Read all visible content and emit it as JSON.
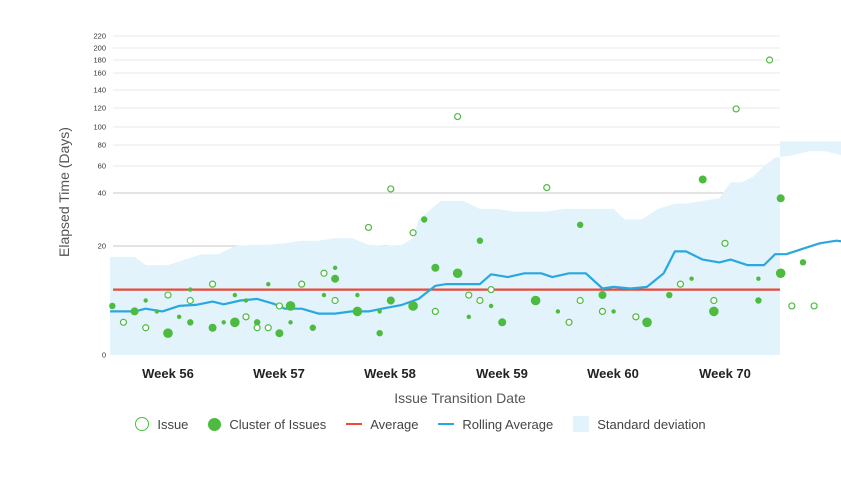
{
  "chart_data": {
    "type": "scatter",
    "ylabel": "Elapsed Time (Days)",
    "xlabel": "Issue Transition Date",
    "y_ticks": [
      "220",
      "200",
      "180",
      "160",
      "140",
      "120",
      "100",
      "80",
      "60",
      "40",
      "20",
      "0"
    ],
    "x_ticks": [
      "Week 56",
      "Week 57",
      "Week 58",
      "Week 59",
      "Week 60",
      "Week 70"
    ],
    "average": 12,
    "colors": {
      "issue": "#4cbb3f",
      "average": "#e84b3a",
      "rolling": "#29a8e0",
      "band": "#e2f3fb",
      "grid": "#dddddd"
    },
    "issues": [
      [
        55.1,
        6
      ],
      [
        55.3,
        5
      ],
      [
        55.5,
        11
      ],
      [
        55.7,
        10
      ],
      [
        55.9,
        13
      ],
      [
        56.2,
        7
      ],
      [
        56.3,
        5
      ],
      [
        56.4,
        5
      ],
      [
        56.5,
        9
      ],
      [
        56.7,
        13
      ],
      [
        56.9,
        15
      ],
      [
        57.0,
        10
      ],
      [
        57.3,
        27
      ],
      [
        57.5,
        43
      ],
      [
        57.7,
        25
      ],
      [
        57.9,
        8
      ],
      [
        58.1,
        111
      ],
      [
        58.2,
        11
      ],
      [
        58.3,
        10
      ],
      [
        58.4,
        12
      ],
      [
        58.9,
        44
      ],
      [
        59.1,
        6
      ],
      [
        59.2,
        10
      ],
      [
        59.4,
        8
      ],
      [
        59.7,
        7
      ],
      [
        60.1,
        13
      ],
      [
        60.4,
        10
      ],
      [
        60.6,
        119
      ],
      [
        60.9,
        180
      ],
      [
        61.1,
        9
      ],
      [
        61.3,
        9
      ],
      [
        60.5,
        21
      ]
    ],
    "clusters": [
      [
        55.0,
        9
      ],
      [
        55.2,
        8
      ],
      [
        55.5,
        4
      ],
      [
        55.7,
        6
      ],
      [
        55.9,
        5
      ],
      [
        56.1,
        6
      ],
      [
        56.3,
        6
      ],
      [
        56.5,
        4
      ],
      [
        56.6,
        9
      ],
      [
        56.8,
        5
      ],
      [
        57.0,
        14
      ],
      [
        57.2,
        8
      ],
      [
        57.4,
        4
      ],
      [
        57.5,
        10
      ],
      [
        57.7,
        9
      ],
      [
        57.8,
        30
      ],
      [
        57.9,
        16
      ],
      [
        58.1,
        15
      ],
      [
        58.3,
        22
      ],
      [
        58.5,
        6
      ],
      [
        58.8,
        10
      ],
      [
        59.2,
        28
      ],
      [
        59.4,
        11
      ],
      [
        59.8,
        6
      ],
      [
        60.0,
        11
      ],
      [
        60.3,
        50
      ],
      [
        60.4,
        8
      ],
      [
        60.8,
        10
      ],
      [
        61.0,
        38
      ],
      [
        61.0,
        15
      ],
      [
        61.2,
        17
      ]
    ],
    "small_dots": [
      [
        55.3,
        10
      ],
      [
        55.4,
        8
      ],
      [
        55.6,
        7
      ],
      [
        55.7,
        12
      ],
      [
        56.0,
        6
      ],
      [
        56.1,
        11
      ],
      [
        56.2,
        10
      ],
      [
        56.4,
        13
      ],
      [
        56.6,
        6
      ],
      [
        56.9,
        11
      ],
      [
        57.0,
        16
      ],
      [
        57.2,
        11
      ],
      [
        57.4,
        8
      ],
      [
        58.2,
        7
      ],
      [
        58.4,
        9
      ],
      [
        59.0,
        8
      ],
      [
        59.5,
        8
      ],
      [
        60.2,
        14
      ],
      [
        60.8,
        14
      ]
    ],
    "rolling": [
      [
        54.98,
        8
      ],
      [
        55.2,
        8
      ],
      [
        55.3,
        8.5
      ],
      [
        55.45,
        8
      ],
      [
        55.6,
        9
      ],
      [
        55.75,
        9.2
      ],
      [
        55.9,
        9.8
      ],
      [
        56.0,
        9.3
      ],
      [
        56.15,
        10
      ],
      [
        56.3,
        10.3
      ],
      [
        56.45,
        9.4
      ],
      [
        56.55,
        8.5
      ],
      [
        56.7,
        8.5
      ],
      [
        56.85,
        7.6
      ],
      [
        57.0,
        7.6
      ],
      [
        57.15,
        8
      ],
      [
        57.3,
        8
      ],
      [
        57.45,
        8.6
      ],
      [
        57.6,
        9.2
      ],
      [
        57.75,
        10.3
      ],
      [
        57.9,
        12.7
      ],
      [
        58.0,
        13
      ],
      [
        58.15,
        13
      ],
      [
        58.3,
        13
      ],
      [
        58.4,
        14.8
      ],
      [
        58.55,
        14.3
      ],
      [
        58.7,
        15
      ],
      [
        58.85,
        15
      ],
      [
        58.95,
        14.3
      ],
      [
        59.1,
        15
      ],
      [
        59.25,
        15
      ],
      [
        59.4,
        12.2
      ],
      [
        59.5,
        12.5
      ],
      [
        59.65,
        12.2
      ],
      [
        59.8,
        12.5
      ],
      [
        59.95,
        15
      ],
      [
        60.05,
        19
      ],
      [
        60.15,
        19
      ],
      [
        60.3,
        17.5
      ],
      [
        60.45,
        17
      ],
      [
        60.55,
        17.5
      ],
      [
        60.7,
        16.5
      ],
      [
        60.85,
        16.5
      ],
      [
        60.95,
        18.5
      ],
      [
        61.05,
        18.5
      ],
      [
        61.2,
        19.5
      ],
      [
        61.35,
        21
      ],
      [
        61.5,
        22
      ],
      [
        61.6,
        21.5
      ],
      [
        61.75,
        23
      ],
      [
        61.9,
        23
      ],
      [
        62.0,
        25
      ]
    ],
    "band_upper": [
      [
        54.98,
        18
      ],
      [
        55.2,
        18
      ],
      [
        55.3,
        16.5
      ],
      [
        55.5,
        16.5
      ],
      [
        55.65,
        17.5
      ],
      [
        55.8,
        18.5
      ],
      [
        55.95,
        18.5
      ],
      [
        56.1,
        20
      ],
      [
        56.25,
        20.5
      ],
      [
        56.4,
        20.5
      ],
      [
        56.55,
        21
      ],
      [
        56.7,
        22
      ],
      [
        56.85,
        22
      ],
      [
        57.0,
        23
      ],
      [
        57.15,
        23
      ],
      [
        57.3,
        20.5
      ],
      [
        57.45,
        20
      ],
      [
        57.6,
        20.5
      ],
      [
        57.7,
        23
      ],
      [
        57.75,
        30
      ],
      [
        57.95,
        37
      ],
      [
        58.15,
        37
      ],
      [
        58.3,
        34
      ],
      [
        58.45,
        34
      ],
      [
        58.6,
        33
      ],
      [
        58.75,
        33
      ],
      [
        58.9,
        33
      ],
      [
        59.05,
        34
      ],
      [
        59.2,
        34
      ],
      [
        59.35,
        34
      ],
      [
        59.5,
        34
      ],
      [
        59.6,
        30
      ],
      [
        59.75,
        30
      ],
      [
        59.9,
        34
      ],
      [
        60.05,
        36
      ],
      [
        60.15,
        36
      ],
      [
        60.3,
        37
      ],
      [
        60.45,
        38
      ],
      [
        60.55,
        48
      ],
      [
        60.65,
        48
      ],
      [
        60.75,
        52
      ],
      [
        60.85,
        60
      ],
      [
        60.95,
        68
      ],
      [
        61.1,
        70
      ],
      [
        61.25,
        74
      ],
      [
        61.4,
        74
      ],
      [
        61.55,
        70
      ],
      [
        61.65,
        80
      ],
      [
        61.8,
        82
      ],
      [
        62.0,
        84
      ]
    ]
  }
}
